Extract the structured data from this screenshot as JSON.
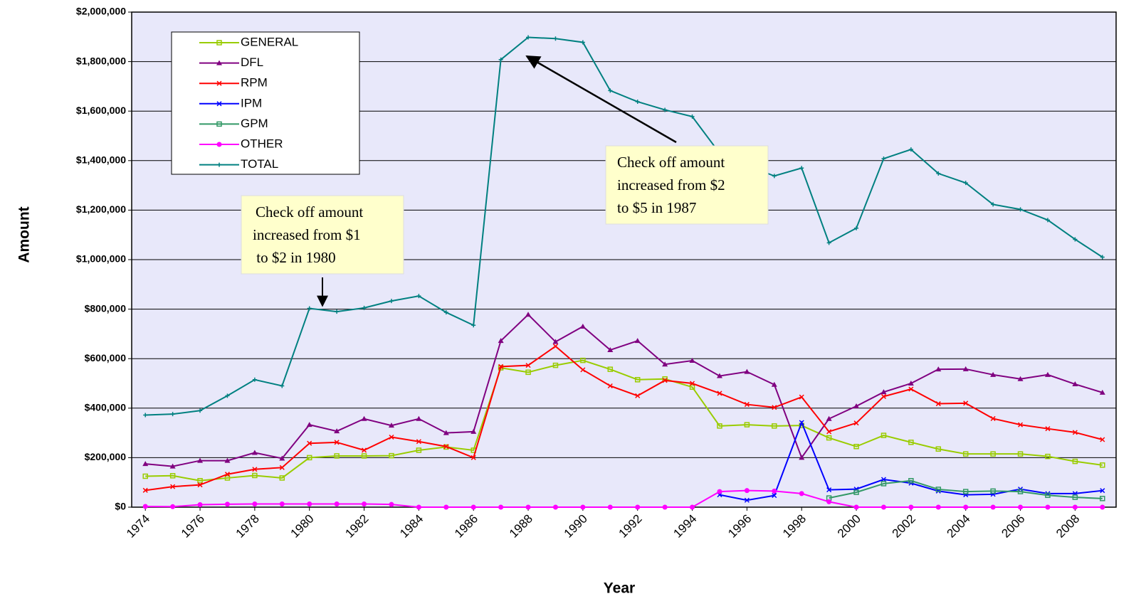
{
  "chart_data": {
    "type": "line",
    "xlabel": "Year",
    "ylabel": "Amount",
    "x": [
      1974,
      1975,
      1976,
      1977,
      1978,
      1979,
      1980,
      1981,
      1982,
      1983,
      1984,
      1985,
      1986,
      1987,
      1988,
      1989,
      1990,
      1991,
      1992,
      1993,
      1994,
      1995,
      1996,
      1997,
      1998,
      1999,
      2000,
      2001,
      2002,
      2003,
      2004,
      2005,
      2006,
      2007,
      2008,
      2009
    ],
    "xlim": [
      1973.5,
      2009.5
    ],
    "xticks": [
      1974,
      1976,
      1978,
      1980,
      1982,
      1984,
      1986,
      1988,
      1990,
      1992,
      1994,
      1996,
      1998,
      2000,
      2002,
      2004,
      2006,
      2008
    ],
    "ylim": [
      0,
      2000000
    ],
    "yticks": [
      {
        "value": 0,
        "label": "$0"
      },
      {
        "value": 200000,
        "label": "$200,000"
      },
      {
        "value": 400000,
        "label": "$400,000"
      },
      {
        "value": 600000,
        "label": "$600,000"
      },
      {
        "value": 800000,
        "label": "$800,000"
      },
      {
        "value": 1000000,
        "label": "$1,000,000"
      },
      {
        "value": 1200000,
        "label": "$1,200,000"
      },
      {
        "value": 1400000,
        "label": "$1,400,000"
      },
      {
        "value": 1600000,
        "label": "$1,600,000"
      },
      {
        "value": 1800000,
        "label": "$1,800,000"
      },
      {
        "value": 2000000,
        "label": "$2,000,000"
      }
    ],
    "grid": true,
    "legend": "upper left",
    "series": [
      {
        "name": "GENERAL",
        "color": "#99cc00",
        "marker": "square",
        "values": [
          125000,
          127000,
          107000,
          118000,
          128000,
          118000,
          200000,
          207000,
          207000,
          208000,
          230000,
          243000,
          230000,
          563000,
          545000,
          573000,
          593000,
          557000,
          515000,
          518000,
          485000,
          328000,
          333000,
          328000,
          330000,
          280000,
          245000,
          290000,
          262000,
          235000,
          215000,
          215000,
          215000,
          205000,
          185000,
          170000
        ]
      },
      {
        "name": "DFL",
        "color": "#800080",
        "marker": "triangle",
        "values": [
          175000,
          165000,
          188000,
          188000,
          220000,
          197000,
          333000,
          307000,
          357000,
          330000,
          357000,
          300000,
          305000,
          672000,
          778000,
          668000,
          730000,
          635000,
          672000,
          577000,
          592000,
          530000,
          547000,
          495000,
          200000,
          357000,
          408000,
          465000,
          500000,
          557000,
          558000,
          535000,
          518000,
          535000,
          497000,
          463000
        ]
      },
      {
        "name": "RPM",
        "color": "#ff0000",
        "marker": "x",
        "values": [
          68000,
          83000,
          90000,
          133000,
          153000,
          160000,
          258000,
          262000,
          230000,
          283000,
          265000,
          245000,
          200000,
          568000,
          573000,
          650000,
          555000,
          490000,
          450000,
          512000,
          500000,
          460000,
          415000,
          403000,
          445000,
          305000,
          340000,
          447000,
          477000,
          418000,
          420000,
          358000,
          333000,
          317000,
          302000,
          273000
        ]
      },
      {
        "name": "IPM",
        "color": "#0000ff",
        "marker": "x",
        "values": [
          null,
          null,
          null,
          null,
          null,
          null,
          null,
          null,
          null,
          null,
          null,
          null,
          null,
          null,
          null,
          null,
          null,
          null,
          null,
          null,
          null,
          50000,
          28000,
          47000,
          342000,
          70000,
          73000,
          112000,
          97000,
          65000,
          50000,
          52000,
          73000,
          55000,
          55000,
          67000
        ]
      },
      {
        "name": "GPM",
        "color": "#339966",
        "marker": "square",
        "values": [
          null,
          null,
          null,
          null,
          null,
          null,
          null,
          null,
          null,
          null,
          null,
          null,
          null,
          null,
          null,
          null,
          null,
          null,
          null,
          null,
          null,
          null,
          null,
          null,
          null,
          37000,
          60000,
          95000,
          107000,
          72000,
          63000,
          65000,
          63000,
          48000,
          40000,
          35000
        ]
      },
      {
        "name": "OTHER",
        "color": "#ff00ff",
        "marker": "circle",
        "values": [
          3000,
          2000,
          10000,
          12000,
          13000,
          13000,
          13000,
          13000,
          13000,
          11000,
          0,
          0,
          0,
          0,
          0,
          0,
          0,
          0,
          0,
          0,
          0,
          63000,
          67000,
          65000,
          55000,
          22000,
          0,
          0,
          0,
          0,
          0,
          0,
          0,
          0,
          0,
          0
        ]
      },
      {
        "name": "TOTAL",
        "color": "#008080",
        "marker": "plus",
        "values": [
          372000,
          376000,
          390000,
          450000,
          515000,
          490000,
          803000,
          790000,
          805000,
          833000,
          853000,
          787000,
          735000,
          1808000,
          1898000,
          1893000,
          1878000,
          1683000,
          1638000,
          1605000,
          1578000,
          1430000,
          1380000,
          1338000,
          1370000,
          1068000,
          1127000,
          1408000,
          1445000,
          1348000,
          1310000,
          1223000,
          1203000,
          1160000,
          1082000,
          1010000
        ]
      }
    ],
    "annotations": [
      {
        "lines": [
          "Check off amount",
          "increased from $1",
          " to $2 in 1980"
        ]
      },
      {
        "lines": [
          "Check off amount",
          "increased from $2",
          "to $5 in 1987"
        ]
      }
    ]
  }
}
